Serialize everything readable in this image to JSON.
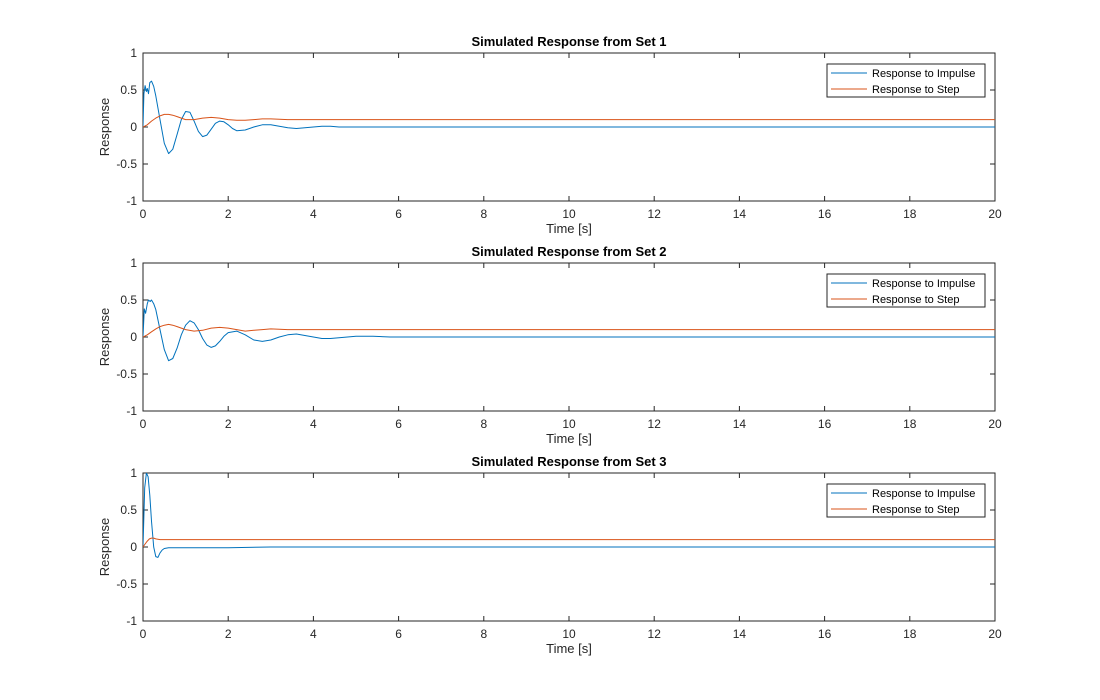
{
  "chart_data": [
    {
      "type": "line",
      "title": "Simulated Response from Set 1",
      "xlabel": "Time [s]",
      "ylabel": "Response",
      "xlim": [
        0,
        20
      ],
      "ylim": [
        -1,
        1
      ],
      "xticks": [
        0,
        2,
        4,
        6,
        8,
        10,
        12,
        14,
        16,
        18,
        20
      ],
      "yticks": [
        -1,
        -0.5,
        0,
        0.5,
        1
      ],
      "grid": false,
      "legend_position": "top-right",
      "series": [
        {
          "name": "Response to Impulse",
          "color": "#0072BD",
          "x": [
            0,
            0.02,
            0.05,
            0.08,
            0.1,
            0.13,
            0.16,
            0.2,
            0.25,
            0.3,
            0.4,
            0.5,
            0.6,
            0.7,
            0.8,
            0.9,
            1.0,
            1.1,
            1.2,
            1.3,
            1.4,
            1.5,
            1.6,
            1.7,
            1.8,
            1.9,
            2.0,
            2.1,
            2.2,
            2.4,
            2.6,
            2.8,
            3.0,
            3.2,
            3.4,
            3.6,
            3.8,
            4.0,
            4.2,
            4.4,
            4.6,
            4.8,
            5.0,
            5.5,
            6.0,
            7.0,
            8.0,
            10.0,
            12.0,
            14.0,
            16.0,
            18.0,
            20.0
          ],
          "y": [
            0.0,
            0.45,
            0.56,
            0.48,
            0.52,
            0.45,
            0.6,
            0.62,
            0.55,
            0.42,
            0.1,
            -0.22,
            -0.36,
            -0.3,
            -0.1,
            0.1,
            0.21,
            0.2,
            0.08,
            -0.06,
            -0.13,
            -0.11,
            -0.03,
            0.05,
            0.08,
            0.07,
            0.03,
            -0.02,
            -0.05,
            -0.04,
            0.0,
            0.03,
            0.03,
            0.01,
            -0.01,
            -0.02,
            -0.01,
            0.0,
            0.01,
            0.01,
            0.0,
            0.0,
            0.0,
            0.0,
            0.0,
            0.0,
            0.0,
            0.0,
            0.0,
            0.0,
            0.0,
            0.0,
            0.0
          ]
        },
        {
          "name": "Response to Step",
          "color": "#D95319",
          "x": [
            0,
            0.1,
            0.2,
            0.3,
            0.4,
            0.5,
            0.6,
            0.7,
            0.8,
            0.9,
            1.0,
            1.2,
            1.4,
            1.6,
            1.8,
            2.0,
            2.2,
            2.4,
            2.6,
            2.8,
            3.0,
            3.4,
            3.8,
            4.2,
            5.0,
            6.0,
            8.0,
            10.0,
            14.0,
            20.0
          ],
          "y": [
            0.0,
            0.03,
            0.08,
            0.12,
            0.15,
            0.17,
            0.17,
            0.16,
            0.14,
            0.12,
            0.1,
            0.1,
            0.12,
            0.13,
            0.12,
            0.1,
            0.09,
            0.09,
            0.1,
            0.11,
            0.11,
            0.1,
            0.1,
            0.1,
            0.1,
            0.1,
            0.1,
            0.1,
            0.1,
            0.1
          ]
        }
      ]
    },
    {
      "type": "line",
      "title": "Simulated Response from Set 2",
      "xlabel": "Time [s]",
      "ylabel": "Response",
      "xlim": [
        0,
        20
      ],
      "ylim": [
        -1,
        1
      ],
      "xticks": [
        0,
        2,
        4,
        6,
        8,
        10,
        12,
        14,
        16,
        18,
        20
      ],
      "yticks": [
        -1,
        -0.5,
        0,
        0.5,
        1
      ],
      "grid": false,
      "legend_position": "top-right",
      "series": [
        {
          "name": "Response to Impulse",
          "color": "#0072BD",
          "x": [
            0,
            0.03,
            0.06,
            0.1,
            0.13,
            0.17,
            0.2,
            0.25,
            0.3,
            0.4,
            0.5,
            0.6,
            0.7,
            0.8,
            0.9,
            1.0,
            1.1,
            1.2,
            1.3,
            1.4,
            1.5,
            1.6,
            1.7,
            1.8,
            1.9,
            2.0,
            2.2,
            2.4,
            2.6,
            2.8,
            3.0,
            3.2,
            3.4,
            3.6,
            3.8,
            4.0,
            4.2,
            4.4,
            4.6,
            4.8,
            5.0,
            5.4,
            5.8,
            6.2,
            7.0,
            8.0,
            10.0,
            12.0,
            14.0,
            16.0,
            18.0,
            20.0
          ],
          "y": [
            0.0,
            0.38,
            0.32,
            0.45,
            0.5,
            0.48,
            0.5,
            0.45,
            0.37,
            0.1,
            -0.17,
            -0.32,
            -0.29,
            -0.15,
            0.03,
            0.16,
            0.22,
            0.19,
            0.1,
            -0.02,
            -0.11,
            -0.14,
            -0.12,
            -0.06,
            0.01,
            0.06,
            0.08,
            0.03,
            -0.04,
            -0.06,
            -0.04,
            0.0,
            0.03,
            0.04,
            0.02,
            0.0,
            -0.02,
            -0.02,
            -0.01,
            0.0,
            0.01,
            0.01,
            0.0,
            0.0,
            0.0,
            0.0,
            0.0,
            0.0,
            0.0,
            0.0,
            0.0,
            0.0
          ]
        },
        {
          "name": "Response to Step",
          "color": "#D95319",
          "x": [
            0,
            0.1,
            0.2,
            0.3,
            0.4,
            0.5,
            0.6,
            0.7,
            0.8,
            0.9,
            1.0,
            1.2,
            1.4,
            1.6,
            1.8,
            2.0,
            2.2,
            2.4,
            2.6,
            2.8,
            3.0,
            3.4,
            3.8,
            4.2,
            5.0,
            6.0,
            8.0,
            10.0,
            14.0,
            20.0
          ],
          "y": [
            0.0,
            0.03,
            0.07,
            0.11,
            0.14,
            0.16,
            0.17,
            0.16,
            0.14,
            0.12,
            0.1,
            0.08,
            0.09,
            0.12,
            0.13,
            0.12,
            0.1,
            0.08,
            0.09,
            0.1,
            0.11,
            0.1,
            0.1,
            0.1,
            0.1,
            0.1,
            0.1,
            0.1,
            0.1,
            0.1
          ]
        }
      ]
    },
    {
      "type": "line",
      "title": "Simulated Response from Set 3",
      "xlabel": "Time [s]",
      "ylabel": "Response",
      "xlim": [
        0,
        20
      ],
      "ylim": [
        -1,
        1
      ],
      "xticks": [
        0,
        2,
        4,
        6,
        8,
        10,
        12,
        14,
        16,
        18,
        20
      ],
      "yticks": [
        -1,
        -0.5,
        0,
        0.5,
        1
      ],
      "grid": false,
      "legend_position": "top-right",
      "series": [
        {
          "name": "Response to Impulse",
          "color": "#0072BD",
          "x": [
            0,
            0.04,
            0.08,
            0.12,
            0.16,
            0.2,
            0.25,
            0.3,
            0.35,
            0.4,
            0.45,
            0.5,
            0.6,
            0.7,
            0.8,
            1.0,
            1.2,
            1.5,
            2.0,
            3.0,
            4.0,
            6.0,
            10.0,
            14.0,
            18.0,
            20.0
          ],
          "y": [
            0.0,
            0.8,
            1.0,
            0.95,
            0.7,
            0.35,
            0.0,
            -0.13,
            -0.14,
            -0.08,
            -0.04,
            -0.02,
            -0.01,
            -0.01,
            -0.01,
            -0.01,
            -0.01,
            -0.01,
            -0.01,
            0.0,
            0.0,
            0.0,
            0.0,
            0.0,
            0.0,
            0.0
          ]
        },
        {
          "name": "Response to Step",
          "color": "#D95319",
          "x": [
            0,
            0.05,
            0.1,
            0.15,
            0.2,
            0.25,
            0.3,
            0.4,
            0.5,
            0.7,
            1.0,
            2.0,
            5.0,
            10.0,
            20.0
          ],
          "y": [
            0.0,
            0.04,
            0.08,
            0.11,
            0.12,
            0.12,
            0.11,
            0.1,
            0.1,
            0.1,
            0.1,
            0.1,
            0.1,
            0.1,
            0.1
          ]
        }
      ]
    }
  ]
}
